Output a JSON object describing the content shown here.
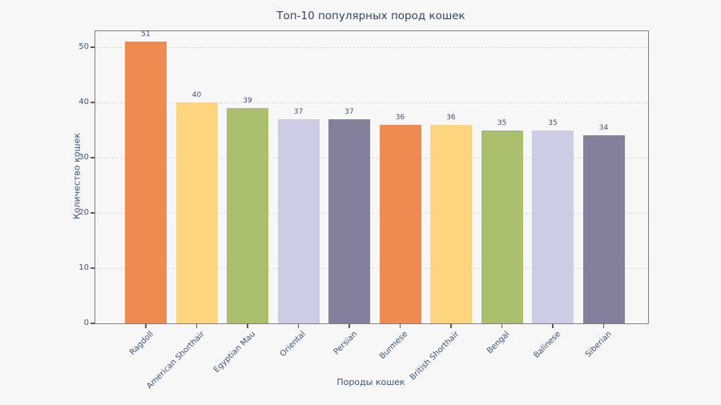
{
  "figure": {
    "title": "Топ-10 популярных пород кошек",
    "x_axis_label": "Породы кошек",
    "y_axis_label": "Количество кошек"
  },
  "chart_data": {
    "type": "bar",
    "title": "Топ-10 популярных пород кошек",
    "xlabel": "Породы кошек",
    "ylabel": "Количество кошек",
    "categories": [
      "Ragdoll",
      "American Shorthair",
      "Egyptian Mau",
      "Oriental",
      "Persian",
      "Burmese",
      "British Shorthair",
      "Bengal",
      "Balinese",
      "Siberian"
    ],
    "values": [
      51,
      40,
      39,
      37,
      37,
      36,
      36,
      35,
      35,
      34
    ],
    "value_labels": [
      "51",
      "40",
      "39",
      "37",
      "37",
      "36",
      "36",
      "35",
      "35",
      "34"
    ],
    "yticks": [
      0,
      10,
      20,
      30,
      40,
      50
    ],
    "ylim": [
      0,
      52.9
    ],
    "grid": "horizontal dashed",
    "legend": "none",
    "bar_palette": [
      "#EF8A50",
      "#FCD57E",
      "#A9BF6B",
      "#CCCCE5",
      "#82809B"
    ]
  },
  "colors": {
    "background": "#F7F7F8",
    "title_text": "#2F4566",
    "label_text": "#3B5375",
    "tick_text": "#3B5375",
    "spine": "#7F7F7F",
    "grid_line": "#DBDBDF"
  }
}
